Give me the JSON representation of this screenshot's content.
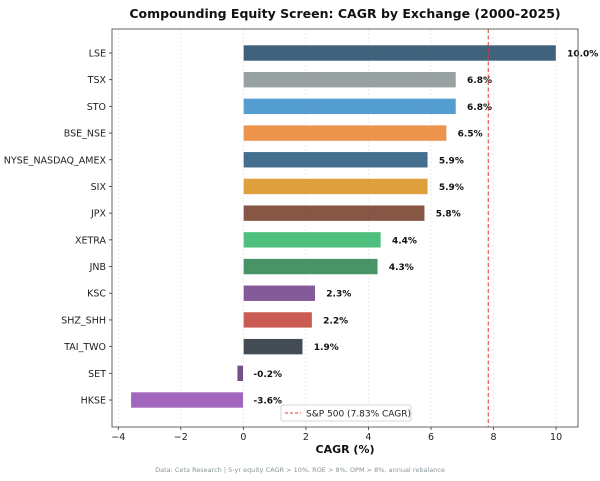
{
  "chart_data": {
    "type": "bar",
    "orientation": "horizontal",
    "title": "Compounding Equity Screen: CAGR by Exchange (2000-2025)",
    "xlabel": "CAGR (%)",
    "ylabel": "",
    "xlim": [
      -4.2,
      10.7
    ],
    "xticks": [
      -4,
      -2,
      0,
      2,
      4,
      6,
      8,
      10
    ],
    "grid": "vertical dashed",
    "categories": [
      "LSE",
      "TSX",
      "STO",
      "BSE_NSE",
      "NYSE_NASDAQ_AMEX",
      "SIX",
      "JPX",
      "XETRA",
      "JNB",
      "KSC",
      "SHZ_SHH",
      "TAI_TWO",
      "SET",
      "HKSE"
    ],
    "values": [
      10.0,
      6.8,
      6.8,
      6.5,
      5.9,
      5.9,
      5.8,
      4.4,
      4.3,
      2.3,
      2.2,
      1.9,
      -0.2,
      -3.6
    ],
    "data_labels": [
      "10.0%",
      "6.8%",
      "6.8%",
      "6.5%",
      "5.9%",
      "5.9%",
      "5.8%",
      "4.4%",
      "4.3%",
      "2.3%",
      "2.2%",
      "1.9%",
      "-0.2%",
      "-3.6%"
    ],
    "colors": [
      "#365a75",
      "#939d9c",
      "#4b98ce",
      "#eb8f42",
      "#3a6889",
      "#dc9b32",
      "#814d3c",
      "#46bc78",
      "#3f8f5e",
      "#7f5293",
      "#c9544a",
      "#39424b",
      "#6d4780",
      "#9e5fba"
    ],
    "reference_line": {
      "value": 7.83,
      "label": "S&P 500 (7.83% CAGR)",
      "color": "#e03c31",
      "style": "dashed"
    },
    "legend_placement": "lower-center",
    "footnote": "Data: Ceta Research | 5-yr equity CAGR > 10%, ROE > 8%, OPM > 8%, annual rebalance"
  }
}
